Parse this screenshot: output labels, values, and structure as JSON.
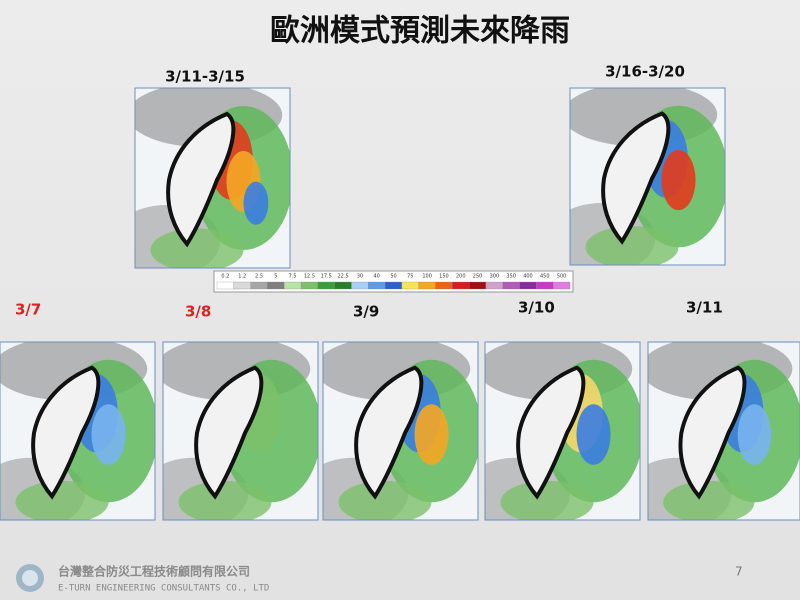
{
  "title": "歐洲模式預測未來降雨",
  "maps": [
    {
      "label": "3/11-3/15"
    },
    {
      "label": "3/16-3/20"
    },
    {
      "label": "3/7"
    },
    {
      "label": "3/8"
    },
    {
      "label": "3/9"
    },
    {
      "label": "3/10"
    },
    {
      "label": "3/11"
    }
  ],
  "legend": [
    "0.2",
    "1.2",
    "2.5",
    "5",
    "7.5",
    "12.5",
    "17.5",
    "22.5",
    "30",
    "40",
    "50",
    "75",
    "100",
    "150",
    "200",
    "250",
    "300",
    "350",
    "400",
    "450",
    "500"
  ],
  "footer": {
    "company": "台灣整合防災工程技術顧問有限公司",
    "company_en": "E-TURN ENGINEERING CONSULTANTS CO., LTD",
    "page": "7"
  }
}
